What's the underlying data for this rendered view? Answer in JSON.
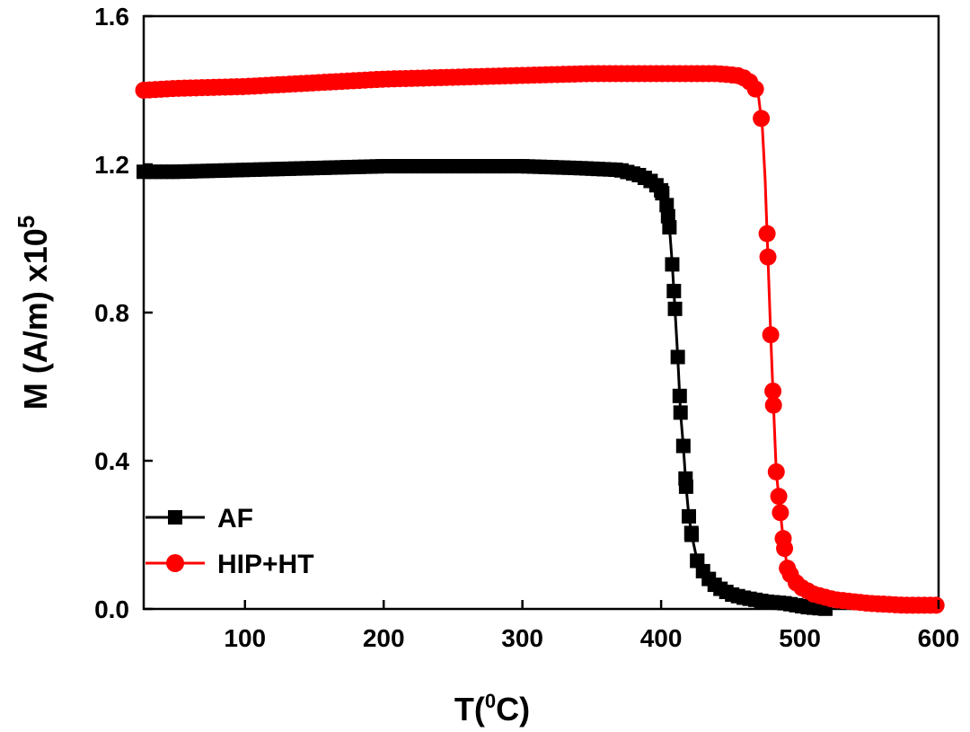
{
  "chart_data": {
    "type": "line",
    "xlabel_main": "T(",
    "xlabel_sup": "0",
    "xlabel_end": "C)",
    "ylabel_main": "M (A/m) x10",
    "ylabel_sup": "5",
    "xlim": [
      27,
      600
    ],
    "ylim": [
      0.0,
      1.6
    ],
    "x_ticks": [
      100,
      200,
      300,
      400,
      500,
      600
    ],
    "x_tick_labels": [
      "100",
      "200",
      "300",
      "400",
      "500",
      "600"
    ],
    "y_ticks": [
      0.0,
      0.4,
      0.8,
      1.2,
      1.6
    ],
    "y_tick_labels": [
      "0.0",
      "0.4",
      "0.8",
      "1.2",
      "1.6"
    ],
    "grid": false,
    "legend_position": "bottom-left",
    "series": [
      {
        "name": "AF",
        "color": "#000000",
        "marker": "square",
        "points": [
          [
            27,
            1.18
          ],
          [
            50,
            1.18
          ],
          [
            100,
            1.185
          ],
          [
            150,
            1.19
          ],
          [
            200,
            1.195
          ],
          [
            250,
            1.195
          ],
          [
            300,
            1.195
          ],
          [
            340,
            1.19
          ],
          [
            370,
            1.185
          ],
          [
            385,
            1.17
          ],
          [
            395,
            1.15
          ],
          [
            400,
            1.13
          ],
          [
            404,
            1.09
          ],
          [
            406,
            1.03
          ],
          [
            408,
            0.93
          ],
          [
            410,
            0.81
          ],
          [
            412,
            0.68
          ],
          [
            414,
            0.53
          ],
          [
            416,
            0.44
          ],
          [
            418,
            0.33
          ],
          [
            420,
            0.25
          ],
          [
            422,
            0.2
          ],
          [
            426,
            0.13
          ],
          [
            432,
            0.09
          ],
          [
            440,
            0.06
          ],
          [
            450,
            0.04
          ],
          [
            460,
            0.03
          ],
          [
            475,
            0.02
          ],
          [
            490,
            0.015
          ],
          [
            505,
            0.005
          ],
          [
            520,
            0.0
          ]
        ]
      },
      {
        "name": "HIP+HT",
        "color": "#ff0000",
        "marker": "circle",
        "points": [
          [
            27,
            1.4
          ],
          [
            50,
            1.405
          ],
          [
            100,
            1.41
          ],
          [
            150,
            1.42
          ],
          [
            200,
            1.43
          ],
          [
            250,
            1.435
          ],
          [
            300,
            1.44
          ],
          [
            350,
            1.445
          ],
          [
            400,
            1.445
          ],
          [
            440,
            1.445
          ],
          [
            455,
            1.44
          ],
          [
            462,
            1.43
          ],
          [
            467,
            1.41
          ],
          [
            470,
            1.39
          ],
          [
            473,
            1.3
          ],
          [
            475,
            1.16
          ],
          [
            477,
            0.95
          ],
          [
            479,
            0.74
          ],
          [
            481,
            0.55
          ],
          [
            483,
            0.37
          ],
          [
            486,
            0.26
          ],
          [
            488,
            0.19
          ],
          [
            491,
            0.11
          ],
          [
            495,
            0.08
          ],
          [
            500,
            0.06
          ],
          [
            510,
            0.04
          ],
          [
            525,
            0.025
          ],
          [
            550,
            0.015
          ],
          [
            575,
            0.01
          ],
          [
            600,
            0.01
          ]
        ]
      }
    ]
  }
}
